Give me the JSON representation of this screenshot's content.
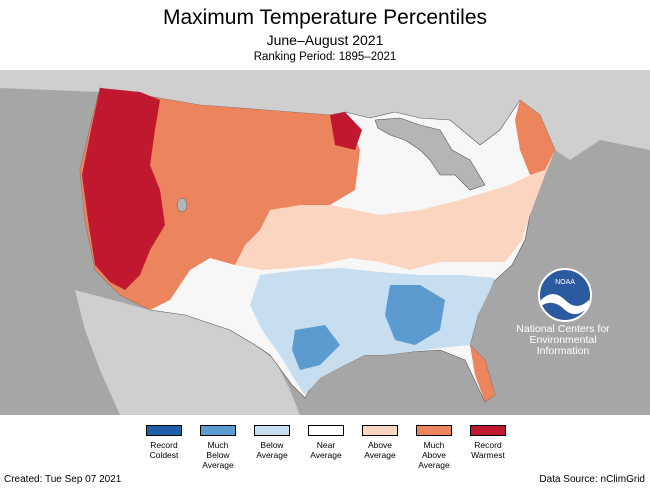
{
  "title": "Maximum Temperature Percentiles",
  "subtitle": "June–August 2021",
  "ranking_period": "Ranking Period: 1895–2021",
  "map": {
    "background_color": "#a6a6a6",
    "land_color": "#cfcfcf",
    "water_color": "#b5b5b5",
    "agency": "National Centers for Environmental Information",
    "agency_lines": [
      "National Centers for",
      "Environmental",
      "Information"
    ],
    "logo_text": "NOAA",
    "logo_icon": "noaa-logo-icon"
  },
  "legend": [
    {
      "label": "Record\nColdest",
      "color": "#1f5fa8"
    },
    {
      "label": "Much\nBelow\nAverage",
      "color": "#5b9bd0"
    },
    {
      "label": "Below\nAverage",
      "color": "#c7ddf0"
    },
    {
      "label": "Near\nAverage",
      "color": "#ffffff"
    },
    {
      "label": "Above\nAverage",
      "color": "#fbd5bf"
    },
    {
      "label": "Much\nAbove\nAverage",
      "color": "#ec855d"
    },
    {
      "label": "Record\nWarmest",
      "color": "#c0182f"
    }
  ],
  "footer": {
    "created": "Created: Tue Sep 07 2021",
    "source": "Data Source: nClimGrid"
  }
}
